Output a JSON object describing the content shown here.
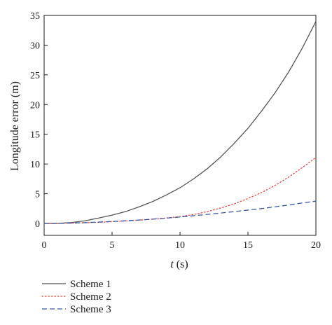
{
  "chart_data": {
    "type": "line",
    "xlabel_var": "t",
    "xlabel_unit": " (s)",
    "ylabel": "Longitude error (m)",
    "xlim": [
      0,
      20
    ],
    "ylim": [
      -2,
      35
    ],
    "xticks": [
      "0",
      "5",
      "10",
      "15",
      "20"
    ],
    "yticks": [
      "0",
      "5",
      "10",
      "15",
      "20",
      "25",
      "30",
      "35"
    ],
    "x": [
      0,
      1,
      2,
      3,
      4,
      5,
      6,
      7,
      8,
      9,
      10,
      11,
      12,
      13,
      14,
      15,
      16,
      17,
      18,
      19,
      20
    ],
    "series": [
      {
        "name": "Scheme 1",
        "color": "#555555",
        "style": "solid",
        "values": [
          0,
          0.01,
          0.15,
          0.45,
          0.9,
          1.4,
          2.0,
          2.8,
          3.7,
          4.8,
          6.0,
          7.5,
          9.2,
          11.2,
          13.5,
          16.0,
          18.9,
          22.0,
          25.5,
          29.5,
          34.0
        ]
      },
      {
        "name": "Scheme 2",
        "color": "#e8453c",
        "style": "dotted",
        "values": [
          0,
          0.02,
          0.06,
          0.12,
          0.2,
          0.3,
          0.42,
          0.56,
          0.72,
          0.92,
          1.15,
          1.5,
          2.0,
          2.6,
          3.3,
          4.2,
          5.2,
          6.4,
          7.8,
          9.4,
          11.1
        ]
      },
      {
        "name": "Scheme 3",
        "color": "#3a5ba8",
        "style": "dashed",
        "values": [
          0,
          0.02,
          0.07,
          0.14,
          0.23,
          0.33,
          0.45,
          0.58,
          0.73,
          0.9,
          1.08,
          1.3,
          1.52,
          1.75,
          2.0,
          2.25,
          2.5,
          2.8,
          3.1,
          3.45,
          3.75
        ]
      }
    ],
    "legend_position": "bottom-left"
  }
}
